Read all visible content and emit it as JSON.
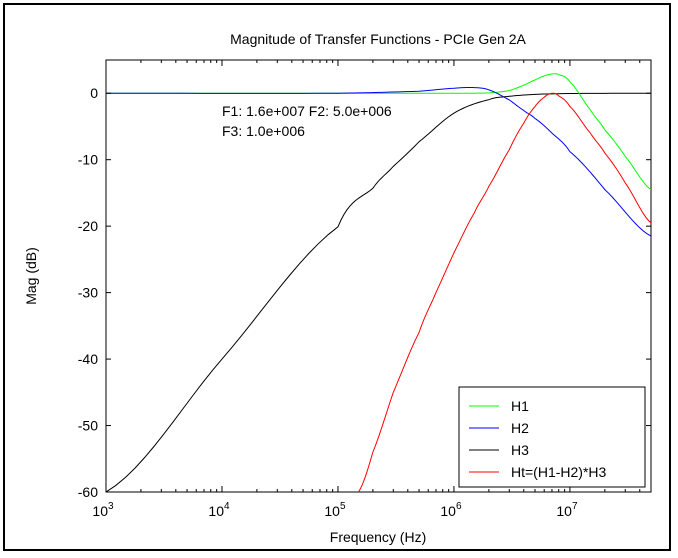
{
  "chart_data": {
    "type": "line",
    "title": "Magnitude of Transfer Functions - PCIe Gen 2A",
    "xlabel": "Frequency (Hz)",
    "ylabel": "Mag (dB)",
    "x_scale": "log",
    "xlim": [
      1000,
      50000000
    ],
    "ylim": [
      -60,
      5
    ],
    "grid": false,
    "legend_position": "bottom-right",
    "x_ticks": [
      {
        "base": "10",
        "exp": "3"
      },
      {
        "base": "10",
        "exp": "4"
      },
      {
        "base": "10",
        "exp": "5"
      },
      {
        "base": "10",
        "exp": "6"
      },
      {
        "base": "10",
        "exp": "7"
      }
    ],
    "x_tick_values": [
      1000,
      10000,
      100000,
      1000000,
      10000000
    ],
    "y_ticks": [
      "0",
      "-10",
      "-20",
      "-30",
      "-40",
      "-50",
      "-60"
    ],
    "y_tick_values": [
      0,
      -10,
      -20,
      -30,
      -40,
      -50,
      -60
    ],
    "annotations": [
      "F1: 1.6e+007 F2: 5.0e+006",
      "F3: 1.0e+006"
    ],
    "series": [
      {
        "name": "H1",
        "color": "#00ff00",
        "x": [
          1000,
          100000,
          1000000,
          2000000,
          3000000,
          4000000,
          5000000,
          6000000,
          7000000,
          8000000,
          10000000,
          15000000,
          20000000,
          30000000,
          50000000
        ],
        "y": [
          0,
          0,
          0,
          0.05,
          0.4,
          1.2,
          2.0,
          2.6,
          2.9,
          2.8,
          1.7,
          -2.5,
          -5.5,
          -9.5,
          -14.5
        ]
      },
      {
        "name": "H2",
        "color": "#0000ff",
        "x": [
          1000,
          100000,
          500000,
          1000000,
          1500000,
          2000000,
          3000000,
          4000000,
          5000000,
          7000000,
          10000000,
          20000000,
          50000000
        ],
        "y": [
          0,
          0,
          0.3,
          0.75,
          0.85,
          0.5,
          -1.0,
          -2.6,
          -3.8,
          -6.0,
          -8.8,
          -14.5,
          -21.5
        ]
      },
      {
        "name": "H3",
        "color": "#000000",
        "x": [
          1000,
          10000,
          100000,
          200000,
          300000,
          500000,
          1000000,
          2000000,
          3000000,
          5000000,
          10000000,
          50000000
        ],
        "y": [
          -60,
          -40,
          -20.1,
          -14.3,
          -11.0,
          -7.3,
          -3.0,
          -0.97,
          -0.46,
          -0.17,
          -0.04,
          0
        ],
        "values_note": ""
      },
      {
        "name": "Ht=(H1-H2)*H3",
        "color": "#ff0000",
        "x": [
          150000,
          200000,
          300000,
          500000,
          700000,
          1000000,
          1500000,
          2000000,
          3000000,
          4000000,
          5000000,
          6000000,
          7000000,
          8000000,
          10000000,
          15000000,
          20000000,
          30000000,
          50000000
        ],
        "y": [
          -60,
          -54,
          -45,
          -36,
          -30,
          -24,
          -18,
          -14,
          -8.5,
          -4.5,
          -2.0,
          -0.6,
          0,
          -0.4,
          -2.0,
          -6.0,
          -9.0,
          -13.5,
          -19.5
        ]
      }
    ]
  }
}
